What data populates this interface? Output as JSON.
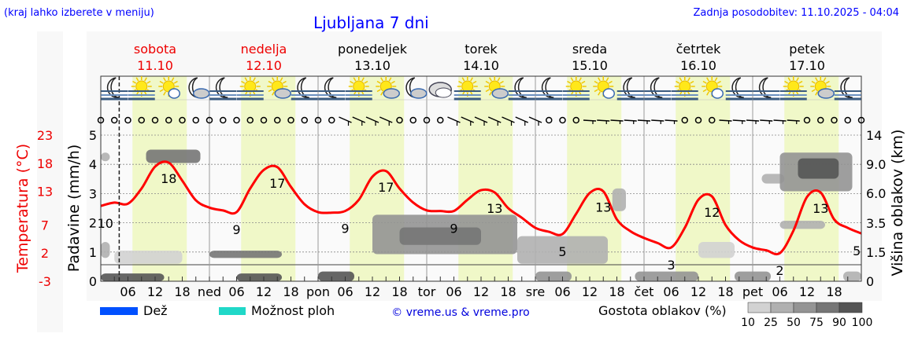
{
  "header": {
    "hint": "(kraj lahko izberete v meniju)",
    "title": "Ljubljana 7 dni",
    "updated": "Zadnja posodobitev: 11.10.2025 - 04:04"
  },
  "days": [
    {
      "name": "sobota",
      "date": "11.10",
      "weekend": true,
      "abbr": ""
    },
    {
      "name": "nedelja",
      "date": "12.10",
      "weekend": true,
      "abbr": "ned"
    },
    {
      "name": "ponedeljek",
      "date": "13.10",
      "weekend": false,
      "abbr": "pon"
    },
    {
      "name": "torek",
      "date": "14.10",
      "weekend": false,
      "abbr": "tor"
    },
    {
      "name": "sreda",
      "date": "15.10",
      "weekend": false,
      "abbr": "sre"
    },
    {
      "name": "četrtek",
      "date": "16.10",
      "weekend": false,
      "abbr": "čet"
    },
    {
      "name": "petek",
      "date": "17.10",
      "weekend": false,
      "abbr": "pet"
    }
  ],
  "weather_icons": [
    "moon-fog",
    "sun-fog",
    "sun-cloud",
    "moon-cloud",
    "moon-fog",
    "sun-fog",
    "sun-cloud-grey",
    "moon-fog",
    "moon-fog",
    "sun-fog",
    "sun-cloud-grey",
    "moon-cloud",
    "cloudy",
    "sun-fog",
    "sun-cloud-grey",
    "moon-fog",
    "moon-fog",
    "sun-fog",
    "sun-cloud",
    "moon-fog",
    "moon-fog",
    "sun-fog",
    "sun-cloud",
    "moon-fog",
    "moon-fog",
    "sun-fog",
    "sun-cloud-grey",
    "moon-fog"
  ],
  "wind": "ccccccccccccccccccwwwwccccwwwwwwwccclllllllcccllllllccccccl",
  "chart_data": {
    "type": "line",
    "x_unit": "hours from 11.10 00:00",
    "now_hour": 4.07,
    "axes": {
      "left_outer": {
        "label": "Temperatura (°C)",
        "ticks": [
          23,
          18,
          13,
          7,
          2,
          -3
        ],
        "range": [
          -3,
          23
        ]
      },
      "left_inner": {
        "label": "Padavine (mm/h)",
        "ticks": [
          0,
          1,
          2,
          3,
          4,
          5
        ],
        "range": [
          0,
          5
        ]
      },
      "right": {
        "label": "Višina oblakov (km)",
        "ticks": [
          "14",
          "9.0",
          "6.0",
          "3.5",
          "1.5",
          "0"
        ]
      },
      "x_ticks": [
        "06",
        "12",
        "18"
      ]
    },
    "grid": true,
    "temperature_3h": [
      10.4,
      11,
      10.8,
      13.5,
      17.4,
      18.1,
      14.9,
      11.4,
      10.1,
      9.6,
      9.3,
      13.5,
      16.8,
      17.3,
      13.8,
      10.7,
      9.3,
      9.2,
      9.5,
      11.5,
      15.6,
      16.6,
      13.5,
      11,
      9.6,
      9.5,
      9.5,
      11.5,
      13.2,
      12.8,
      10,
      8.3,
      6.5,
      5.8,
      5.4,
      9,
      12.7,
      13,
      8,
      5.9,
      4.7,
      3.8,
      3,
      6.5,
      11.5,
      12.1,
      7,
      4.3,
      3,
      2.5,
      2,
      6,
      12,
      12.8,
      8,
      6.5,
      5.5
    ],
    "temperature_labels": [
      {
        "h": 1,
        "t": "10",
        "k": "min"
      },
      {
        "h": 15,
        "t": "18",
        "k": "max"
      },
      {
        "h": 30,
        "t": "9",
        "k": "min"
      },
      {
        "h": 39,
        "t": "17",
        "k": "max"
      },
      {
        "h": 54,
        "t": "9",
        "k": "min"
      },
      {
        "h": 63,
        "t": "17",
        "k": "max"
      },
      {
        "h": 78,
        "t": "9",
        "k": "min"
      },
      {
        "h": 87,
        "t": "13",
        "k": "max"
      },
      {
        "h": 102,
        "t": "5",
        "k": "min"
      },
      {
        "h": 111,
        "t": "13",
        "k": "max"
      },
      {
        "h": 126,
        "t": "3",
        "k": "min"
      },
      {
        "h": 135,
        "t": "12",
        "k": "max"
      },
      {
        "h": 150,
        "t": "2",
        "k": "min"
      },
      {
        "h": 159,
        "t": "13",
        "k": "max"
      },
      {
        "h": 167,
        "t": "5",
        "k": "min"
      }
    ],
    "clouds": [
      {
        "h0": 0,
        "h1": 2,
        "k0": 9.5,
        "k1": 11,
        "d": 25
      },
      {
        "h0": 10,
        "h1": 22,
        "k0": 9.2,
        "k1": 11.5,
        "d": 75
      },
      {
        "h0": 0,
        "h1": 2,
        "k0": 1.2,
        "k1": 2.2,
        "d": 25
      },
      {
        "h0": 3,
        "h1": 18,
        "k0": 0.9,
        "k1": 1.6,
        "d": 10
      },
      {
        "h0": 0,
        "h1": 14,
        "k0": 0,
        "k1": 0.4,
        "d": 90
      },
      {
        "h0": 24,
        "h1": 40,
        "k0": 1.2,
        "k1": 1.6,
        "d": 75
      },
      {
        "h0": 30,
        "h1": 40,
        "k0": 0,
        "k1": 0.4,
        "d": 90
      },
      {
        "h0": 48,
        "h1": 56,
        "k0": 0,
        "k1": 0.5,
        "d": 90
      },
      {
        "h0": 60,
        "h1": 92,
        "k0": 1.4,
        "k1": 4.2,
        "d": 50
      },
      {
        "h0": 66,
        "h1": 84,
        "k0": 2.0,
        "k1": 3.2,
        "d": 75
      },
      {
        "h0": 92,
        "h1": 112,
        "k0": 0.9,
        "k1": 2.6,
        "d": 25
      },
      {
        "h0": 96,
        "h1": 104,
        "k0": 0,
        "k1": 0.5,
        "d": 50
      },
      {
        "h0": 118,
        "h1": 132,
        "k0": 0,
        "k1": 0.5,
        "d": 50
      },
      {
        "h0": 113,
        "h1": 116,
        "k0": 4.5,
        "k1": 6.5,
        "d": 25
      },
      {
        "h0": 132,
        "h1": 140,
        "k0": 1.2,
        "k1": 2.2,
        "d": 10
      },
      {
        "h0": 140,
        "h1": 148,
        "k0": 0,
        "k1": 0.5,
        "d": 50
      },
      {
        "h0": 146,
        "h1": 151,
        "k0": 7,
        "k1": 8,
        "d": 25
      },
      {
        "h0": 150,
        "h1": 166,
        "k0": 6.2,
        "k1": 11,
        "d": 50
      },
      {
        "h0": 154,
        "h1": 163,
        "k0": 7.5,
        "k1": 10,
        "d": 90
      },
      {
        "h0": 150,
        "h1": 160,
        "k0": 3.1,
        "k1": 3.7,
        "d": 25
      },
      {
        "h0": 164,
        "h1": 168,
        "k0": 0,
        "k1": 0.5,
        "d": 25
      }
    ]
  },
  "legend": {
    "rain": "Dež",
    "showers": "Možnost ploh",
    "credit": "© vreme.us & vreme.pro",
    "density_label": "Gostota oblakov (%)",
    "density_ticks": [
      "10",
      "25",
      "50",
      "75",
      "90",
      "100"
    ],
    "colors": {
      "rain": "#0050ff",
      "showers": "#20d8c8",
      "temperature": "#ff0000",
      "day": "#f0f8c8"
    }
  }
}
